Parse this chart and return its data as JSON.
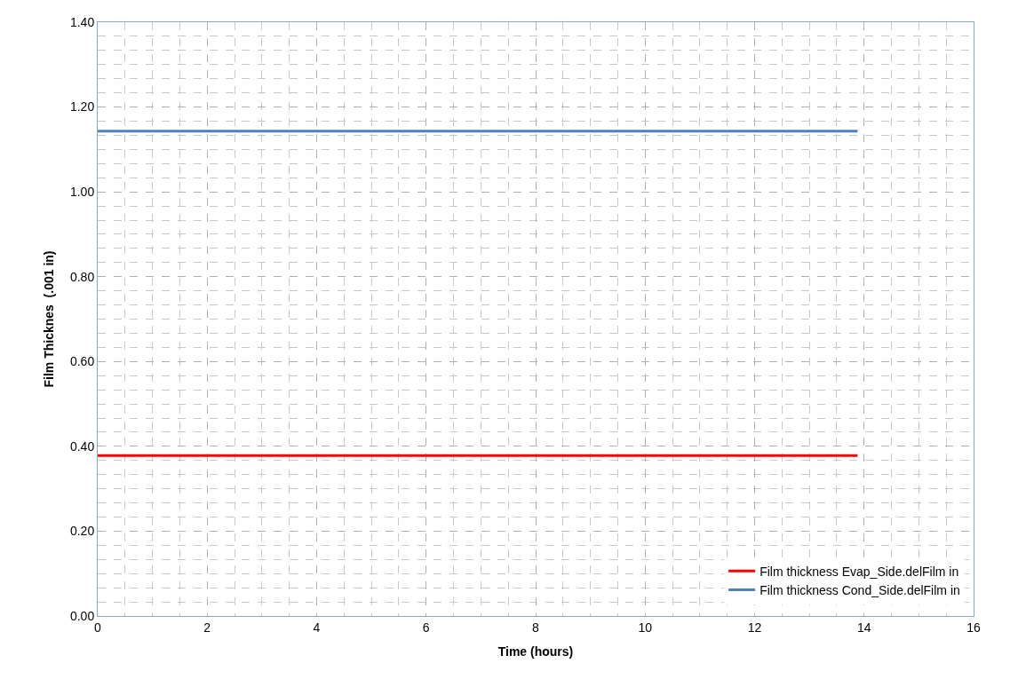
{
  "chart_data": {
    "type": "line",
    "xlabel": "Time (hours)",
    "ylabel": "Film Thicknes  (.001 in)",
    "series": [
      {
        "name": "Film thickness Evap_Side.delFilm in",
        "color": "#ff0000",
        "values": [
          0.378,
          0.378
        ]
      },
      {
        "name": "Film thickness Cond_Side.delFilm in",
        "color": "#4f81bd",
        "values": [
          1.143,
          1.143
        ]
      }
    ],
    "x": [
      0,
      13.88
    ],
    "xlim": [
      0,
      16
    ],
    "xticks": [
      0,
      2,
      4,
      6,
      8,
      10,
      12,
      14,
      16
    ],
    "ylim": [
      0,
      1.4
    ],
    "yticks": [
      {
        "value": 0,
        "label": "0.00"
      },
      {
        "value": 0.2,
        "label": "0.20"
      },
      {
        "value": 0.4,
        "label": "0.40"
      },
      {
        "value": 0.6,
        "label": "0.60"
      },
      {
        "value": 0.8,
        "label": "0.80"
      },
      {
        "value": 1.0,
        "label": "1.00"
      },
      {
        "value": 1.2,
        "label": "1.20"
      },
      {
        "value": 1.4,
        "label": "1.40"
      }
    ],
    "grid": true,
    "legend": "bottom right",
    "marker": "none",
    "line_style": "solid"
  }
}
